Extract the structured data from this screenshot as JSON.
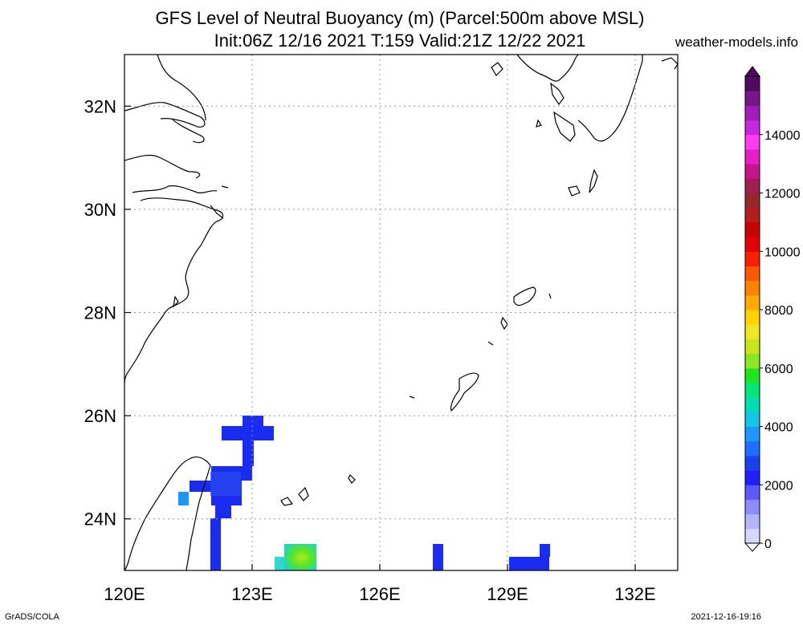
{
  "header": {
    "title_line1": "GFS Level of Neutral Buoyancy (m) (Parcel:500m above MSL)",
    "title_line2": "Init:06Z 12/16 2021 T:159 Valid:21Z 12/22 2021",
    "site": "weather-models.info"
  },
  "footer": {
    "left": "GrADS/COLA",
    "right": "2021-12-16-19:16"
  },
  "map": {
    "lon_range": [
      120,
      133
    ],
    "lat_range": [
      23,
      33
    ],
    "lon_ticks": [
      "120E",
      "123E",
      "126E",
      "129E",
      "132E"
    ],
    "lat_ticks": [
      "32N",
      "30N",
      "28N",
      "26N",
      "24N"
    ]
  },
  "colorbar": {
    "ticks": [
      "14000",
      "12000",
      "10000",
      "8000",
      "6000",
      "4000",
      "2000",
      "0"
    ],
    "colors": [
      "#d6d6ff",
      "#b4b4ff",
      "#8c8cff",
      "#5a5aff",
      "#2020ff",
      "#1a40f0",
      "#1e6eff",
      "#1e96ff",
      "#10c8e6",
      "#00dcb4",
      "#00e678",
      "#1ee61e",
      "#8ce620",
      "#c8e61e",
      "#f0e61e",
      "#ffd200",
      "#ffaa00",
      "#ff8200",
      "#ff5a00",
      "#ff1e00",
      "#e60000",
      "#c80000",
      "#b41e1e",
      "#962828",
      "#a01e50",
      "#c8148c",
      "#e61ec8",
      "#ff3cf0",
      "#c828dc",
      "#a01eb4",
      "#78148c",
      "#500a64"
    ]
  }
}
